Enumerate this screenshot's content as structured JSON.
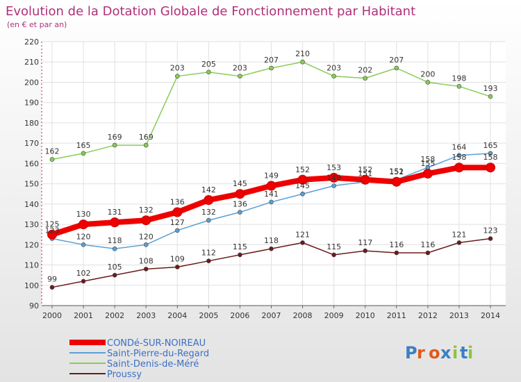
{
  "title": "Evolution de la Dotation Globale de Fonctionnement par Habitant",
  "subtitle": "(en € et par an)",
  "logo_text": "Proxiti",
  "colors": {
    "title": "#b0307a",
    "legend_text": "#3b6fc4",
    "axis": "#c81e4b"
  },
  "chart_data": {
    "type": "line",
    "x": [
      2000,
      2001,
      2002,
      2003,
      2004,
      2005,
      2006,
      2007,
      2008,
      2009,
      2010,
      2011,
      2012,
      2013,
      2014
    ],
    "ylim": [
      90,
      220
    ],
    "yticks": [
      90,
      100,
      110,
      120,
      130,
      140,
      150,
      160,
      170,
      180,
      190,
      200,
      210,
      220
    ],
    "grid": true,
    "legend_position": "bottom-left",
    "series": [
      {
        "name": "Saint-Denis-de-Méré",
        "color": "#88cc55",
        "values": [
          162,
          165,
          169,
          169,
          203,
          205,
          203,
          207,
          210,
          203,
          202,
          207,
          200,
          198,
          193
        ],
        "labels": [
          "162",
          "165",
          "169",
          "169",
          "203",
          "205",
          "203",
          "207",
          "210",
          "203",
          "202",
          "207",
          "200",
          "198",
          "193"
        ]
      },
      {
        "name": "Proussy",
        "color": "#6b1a1a",
        "values": [
          99,
          102,
          105,
          108,
          109,
          112,
          115,
          118,
          121,
          115,
          117,
          116,
          116,
          121,
          123
        ],
        "labels": [
          "99",
          "102",
          "105",
          "108",
          "109",
          "112",
          "115",
          "118",
          "121",
          "115",
          "117",
          "116",
          "116",
          "121",
          "123"
        ]
      },
      {
        "name": "Saint-Pierre-du-Regard",
        "color": "#5a9fd4",
        "values": [
          123,
          120,
          118,
          120,
          127,
          132,
          136,
          141,
          145,
          149,
          151,
          152,
          158,
          164,
          165
        ],
        "labels": [
          "123",
          "120",
          "118",
          "120",
          "127",
          "132",
          "136",
          "141",
          "145",
          "149",
          "151",
          "152",
          "158",
          "164",
          "165"
        ]
      },
      {
        "name": "CONDé-SUR-NOIREAU",
        "color": "#ee0000",
        "bold": true,
        "values": [
          125,
          130,
          131,
          132,
          136,
          142,
          145,
          149,
          152,
          153,
          152,
          151,
          155,
          158,
          158
        ],
        "labels": [
          "125",
          "130",
          "131",
          "132",
          "136",
          "142",
          "145",
          "149",
          "152",
          "153",
          "152",
          "151",
          "155",
          "158",
          "158"
        ]
      }
    ],
    "legend": [
      "CONDé-SUR-NOIREAU",
      "Saint-Pierre-du-Regard",
      "Saint-Denis-de-Méré",
      "Proussy"
    ]
  }
}
